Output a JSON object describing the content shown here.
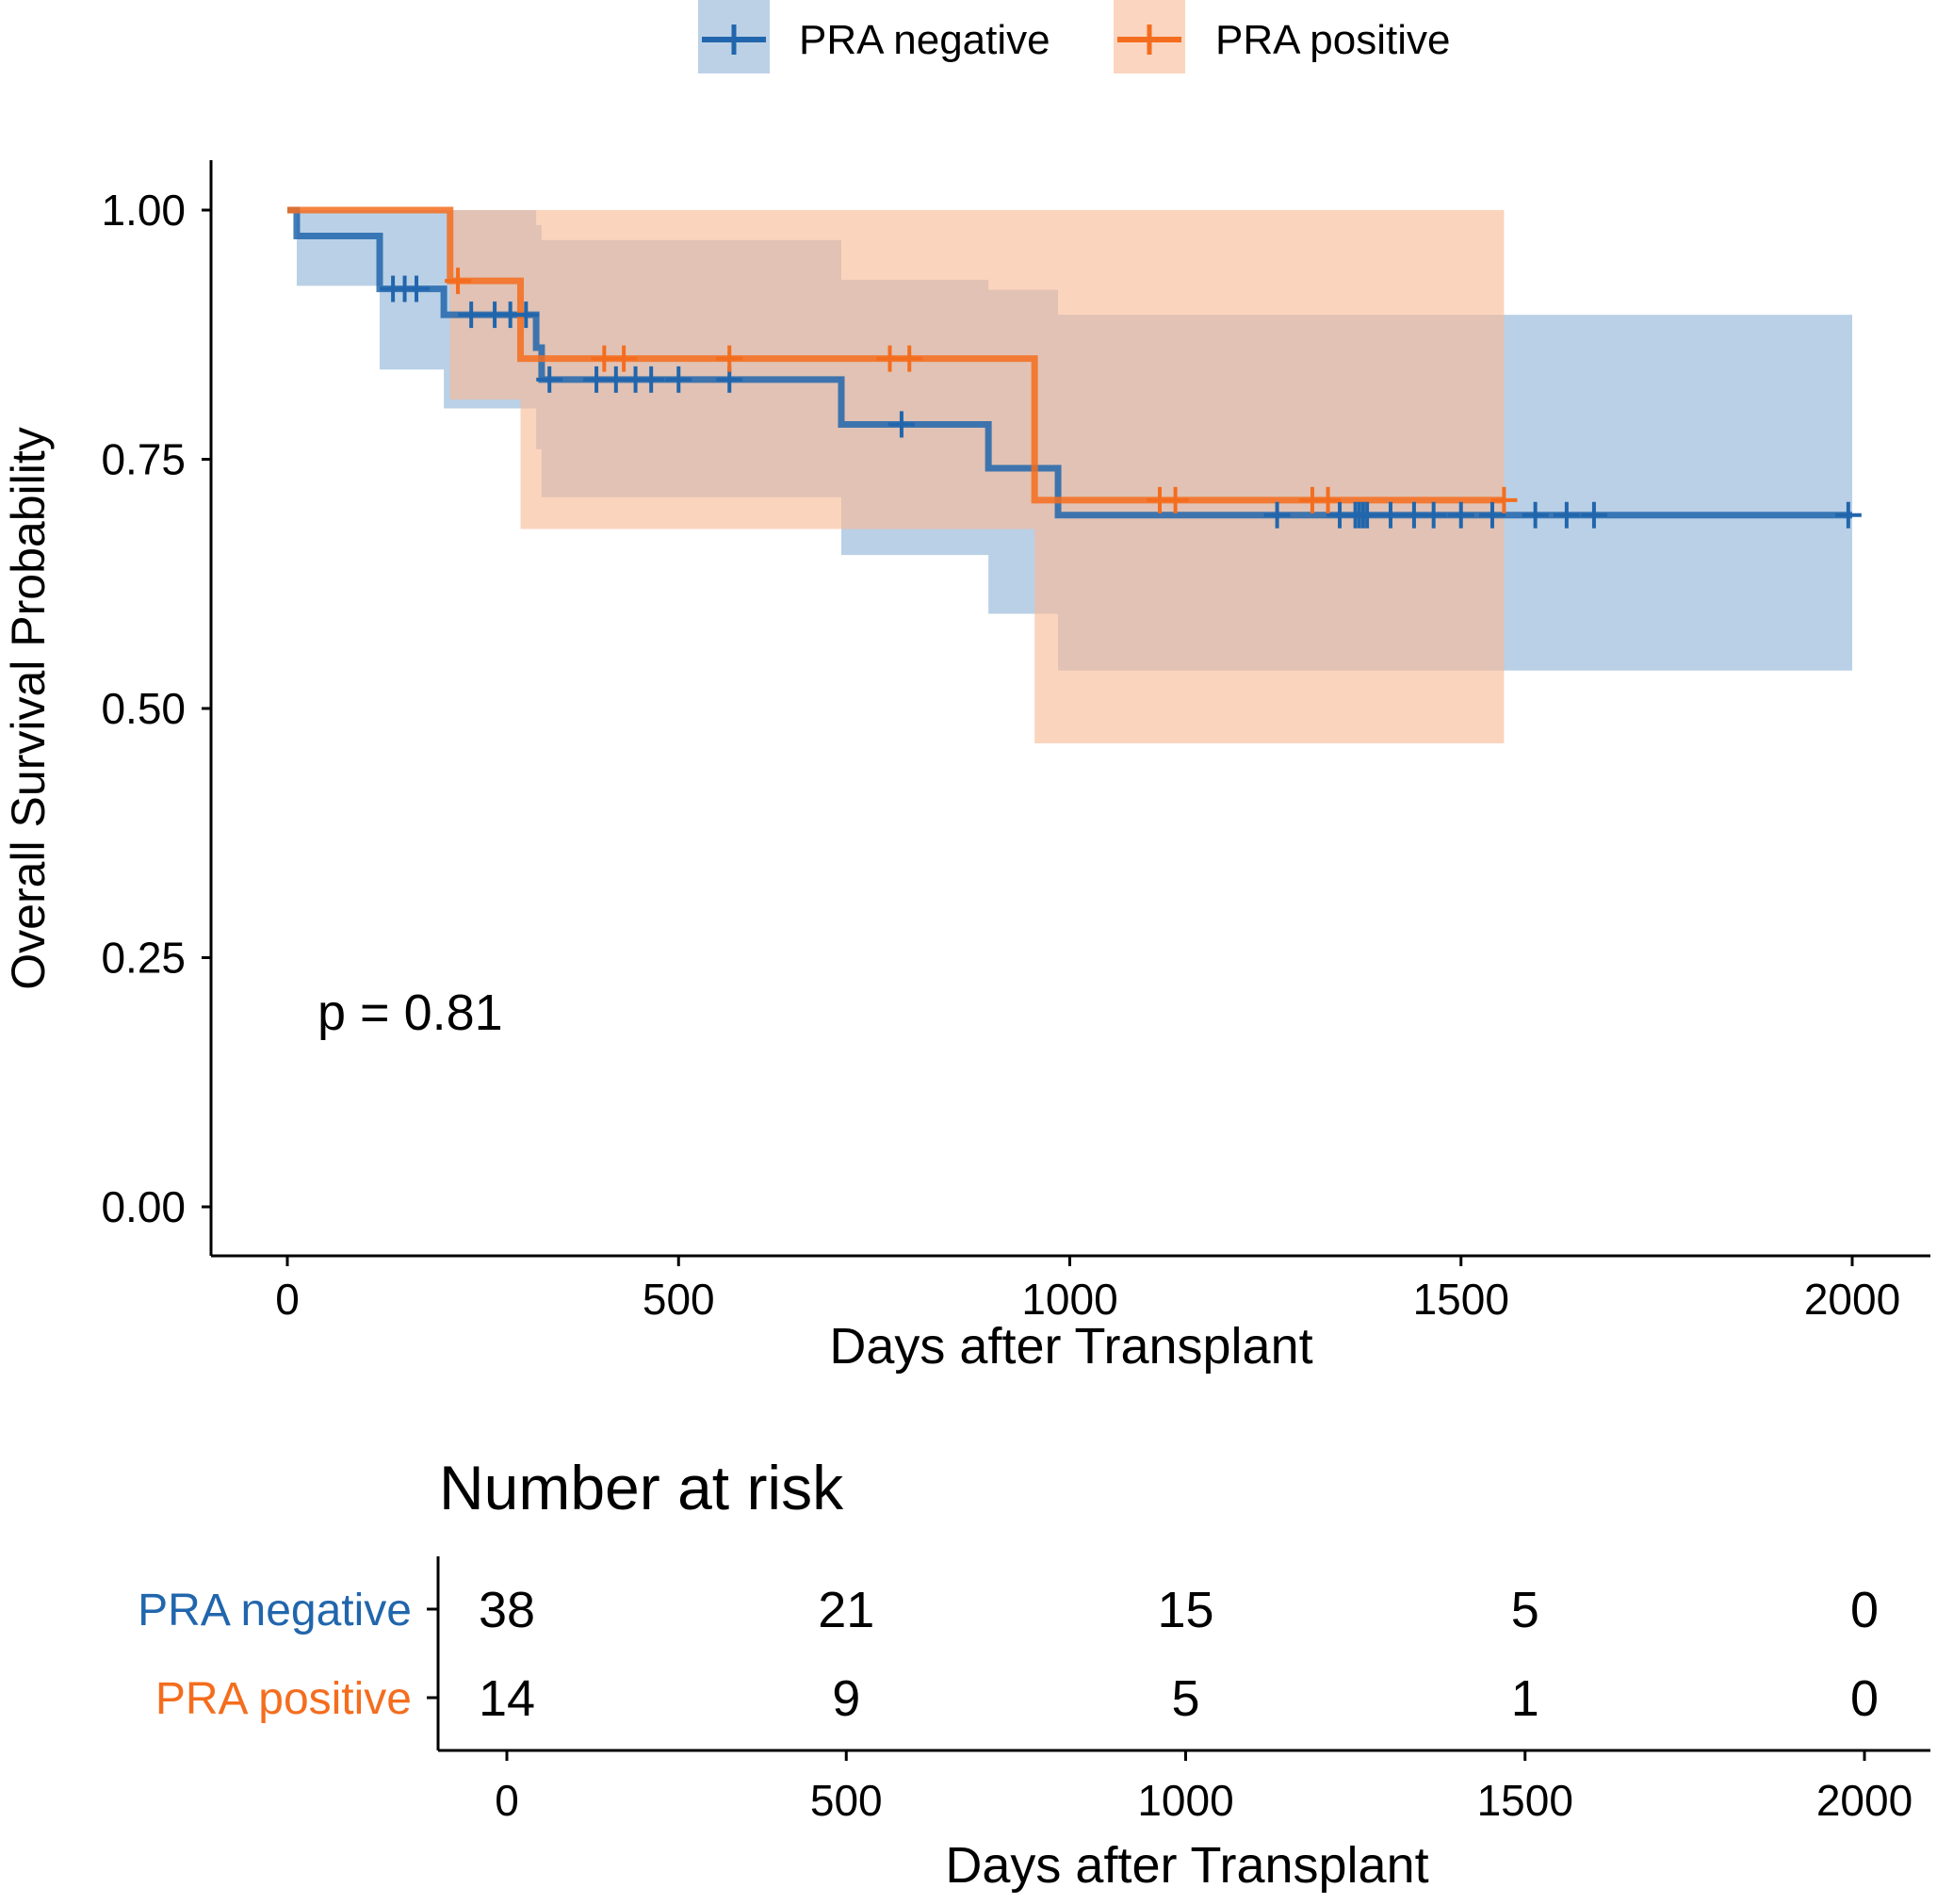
{
  "chart_data": {
    "type": "line",
    "subtype": "kaplan-meier",
    "legend": {
      "position": "top",
      "entries": [
        {
          "name": "PRA negative",
          "color": "#2166ac"
        },
        {
          "name": "PRA positive",
          "color": "#f46d1e"
        }
      ]
    },
    "ylabel": "Overall Survival Probability",
    "xlabel": "Days after Transplant",
    "xlim": [
      -100,
      2100
    ],
    "ylim": [
      -0.045,
      1.045
    ],
    "xticks": [
      "0",
      "500",
      "1000",
      "1500",
      "2000"
    ],
    "yticks": [
      "0.00",
      "0.25",
      "0.50",
      "0.75",
      "1.00"
    ],
    "annotation": "p = 0.81",
    "series": [
      {
        "name": "PRA negative",
        "color": "#2166ac",
        "band_color": "#8fb3d6",
        "end_x": 2000,
        "steps": [
          {
            "t": 0,
            "s": 1.0
          },
          {
            "t": 12,
            "s": 0.974
          },
          {
            "t": 118,
            "s": 0.921
          },
          {
            "t": 200,
            "s": 0.895
          },
          {
            "t": 318,
            "s": 0.862
          },
          {
            "t": 325,
            "s": 0.83
          },
          {
            "t": 708,
            "s": 0.785
          },
          {
            "t": 896,
            "s": 0.741
          },
          {
            "t": 985,
            "s": 0.694
          }
        ],
        "ci": [
          {
            "t": 0,
            "lo": 1.0,
            "hi": 1.0
          },
          {
            "t": 12,
            "lo": 0.924,
            "hi": 1.0
          },
          {
            "t": 118,
            "lo": 0.84,
            "hi": 1.0
          },
          {
            "t": 200,
            "lo": 0.801,
            "hi": 1.0
          },
          {
            "t": 318,
            "lo": 0.76,
            "hi": 0.985
          },
          {
            "t": 325,
            "lo": 0.712,
            "hi": 0.97
          },
          {
            "t": 708,
            "lo": 0.654,
            "hi": 0.93
          },
          {
            "t": 896,
            "lo": 0.595,
            "hi": 0.92
          },
          {
            "t": 985,
            "lo": 0.538,
            "hi": 0.895
          }
        ],
        "censor": [
          135,
          150,
          165,
          235,
          265,
          285,
          305,
          335,
          395,
          420,
          445,
          465,
          500,
          565,
          785,
          1265,
          1345,
          1365,
          1370,
          1375,
          1380,
          1410,
          1440,
          1465,
          1500,
          1540,
          1595,
          1635,
          1670,
          1995
        ]
      },
      {
        "name": "PRA positive",
        "color": "#f46d1e",
        "band_color": "#f9b994",
        "end_x": 1555,
        "steps": [
          {
            "t": 0,
            "s": 1.0
          },
          {
            "t": 208,
            "s": 0.929
          },
          {
            "t": 298,
            "s": 0.851
          },
          {
            "t": 955,
            "s": 0.709
          }
        ],
        "ci": [
          {
            "t": 0,
            "lo": 1.0,
            "hi": 1.0
          },
          {
            "t": 208,
            "lo": 0.81,
            "hi": 1.0
          },
          {
            "t": 298,
            "lo": 0.68,
            "hi": 1.0
          },
          {
            "t": 955,
            "lo": 0.465,
            "hi": 1.0
          }
        ],
        "censor": [
          218,
          405,
          430,
          565,
          770,
          795,
          1115,
          1135,
          1310,
          1330,
          1555
        ]
      }
    ],
    "risk_table": {
      "title": "Number at risk",
      "xlabel": "Days after Transplant",
      "xticks": [
        "0",
        "500",
        "1000",
        "1500",
        "2000"
      ],
      "rows": [
        {
          "label": "PRA negative",
          "color": "#2166ac",
          "counts": [
            "38",
            "21",
            "15",
            "5",
            "0"
          ]
        },
        {
          "label": "PRA positive",
          "color": "#f46d1e",
          "counts": [
            "14",
            "9",
            "5",
            "1",
            "0"
          ]
        }
      ]
    }
  }
}
